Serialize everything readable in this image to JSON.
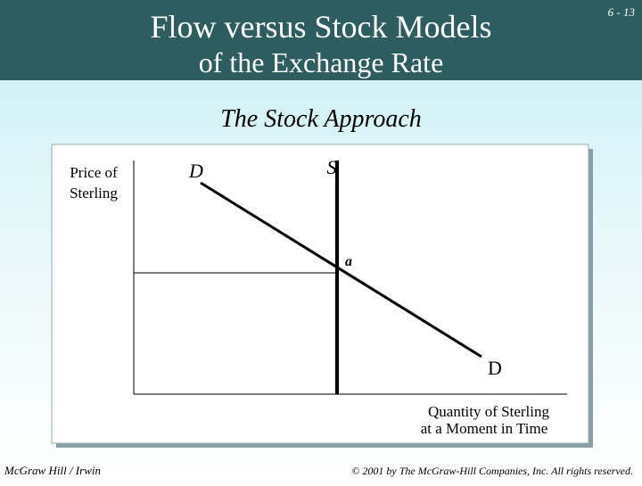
{
  "header": {
    "title": [
      "Flow versus Stock Models",
      "of the Exchange Rate"
    ],
    "slide_number": "6 - 13"
  },
  "subtitle": "The Stock Approach",
  "diagram": {
    "y_axis_label": [
      "Price of",
      "Sterling"
    ],
    "x_axis_label": [
      "Quantity of Sterling",
      "at a Moment in Time"
    ],
    "demand_label_top": "D",
    "demand_label_bottom": "D",
    "supply_label": "S",
    "point_label": "a"
  },
  "footer": {
    "left": "McGraw Hill / Irwin",
    "right": "© 2001 by The McGraw-Hill Companies, Inc. All rights reserved."
  }
}
